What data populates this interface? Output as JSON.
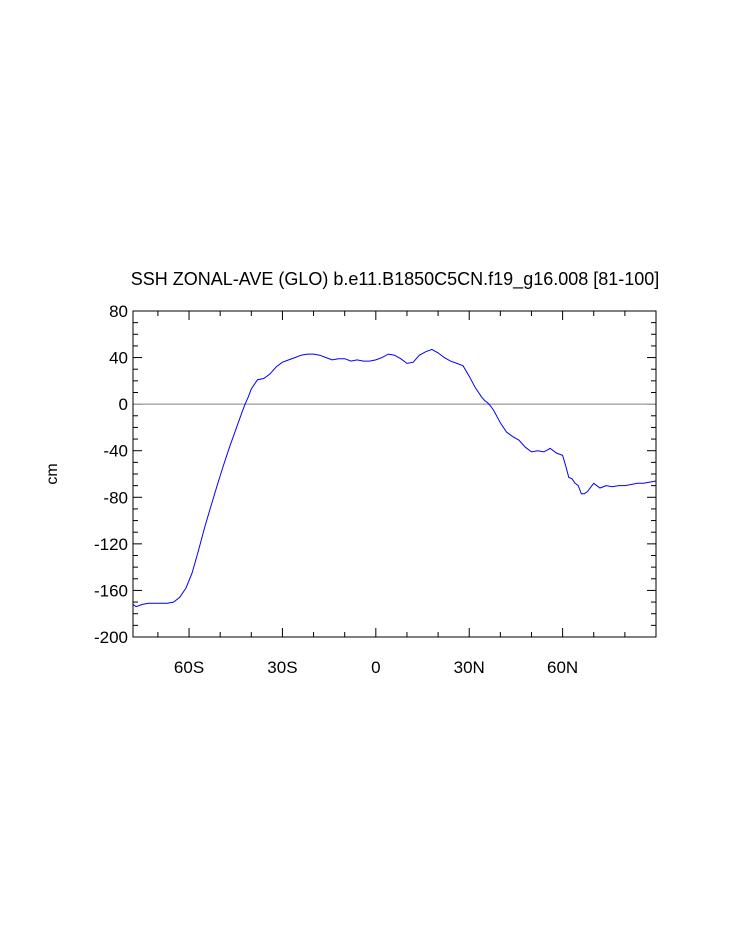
{
  "chart_data": {
    "type": "line",
    "title": "SSH ZONAL-AVE (GLO) b.e11.B1850C5CN.f19_g16.008 [81-100]",
    "xlabel": "",
    "ylabel": "cm",
    "xlim": [
      -78,
      90
    ],
    "ylim": [
      -200,
      80
    ],
    "x_ticks": [
      -60,
      -30,
      0,
      30,
      60
    ],
    "x_tick_labels": [
      "60S",
      "30S",
      "0",
      "30N",
      "60N"
    ],
    "y_ticks": [
      80,
      40,
      0,
      -40,
      -80,
      -120,
      -160,
      -200
    ],
    "y_tick_labels": [
      "80",
      "40",
      "0",
      "-40",
      "-80",
      "-120",
      "-160",
      "-200"
    ],
    "reference_line": 0,
    "grid": false,
    "line_color": "#0000ff",
    "reference_color": "#999999",
    "series": [
      {
        "x": [
          -78,
          -77,
          -75,
          -73,
          -70,
          -67,
          -65,
          -63,
          -61,
          -59,
          -57,
          -55,
          -53,
          -51,
          -49,
          -47,
          -45,
          -43,
          -42,
          -41,
          -40,
          -38,
          -36,
          -34,
          -32,
          -30,
          -28,
          -26,
          -24,
          -22,
          -20,
          -18,
          -16,
          -14,
          -12,
          -10,
          -8,
          -6,
          -4,
          -2,
          0,
          2,
          4,
          6,
          8,
          10,
          12,
          14,
          16,
          18,
          20,
          22,
          24,
          26,
          28,
          30,
          32,
          34,
          35,
          36,
          37,
          38,
          40,
          42,
          44,
          46,
          48,
          50,
          52,
          54,
          56,
          58,
          60,
          61,
          62,
          63,
          64,
          65,
          66,
          67,
          68,
          70,
          72,
          74,
          76,
          78,
          80,
          82,
          84,
          86,
          88,
          90
        ],
        "y": [
          -172,
          -174,
          -172,
          -171,
          -171,
          -171,
          -170,
          -166,
          -158,
          -145,
          -126,
          -106,
          -88,
          -70,
          -53,
          -37,
          -22,
          -7,
          0,
          6,
          13,
          21,
          22,
          26,
          32,
          36,
          38,
          40,
          42,
          43,
          43,
          42,
          40,
          38,
          39,
          39,
          37,
          38,
          37,
          37,
          38,
          40,
          43,
          42,
          39,
          35,
          36,
          42,
          45,
          47,
          44,
          40,
          37,
          35,
          33,
          24,
          14,
          6,
          3,
          1,
          -2,
          -6,
          -16,
          -24,
          -28,
          -31,
          -37,
          -41,
          -40,
          -41,
          -38,
          -42,
          -44,
          -53,
          -63,
          -64,
          -68,
          -70,
          -77,
          -77,
          -75,
          -68,
          -72,
          -70,
          -71,
          -70,
          -70,
          -69,
          -68,
          -68,
          -67,
          -66
        ]
      }
    ]
  }
}
